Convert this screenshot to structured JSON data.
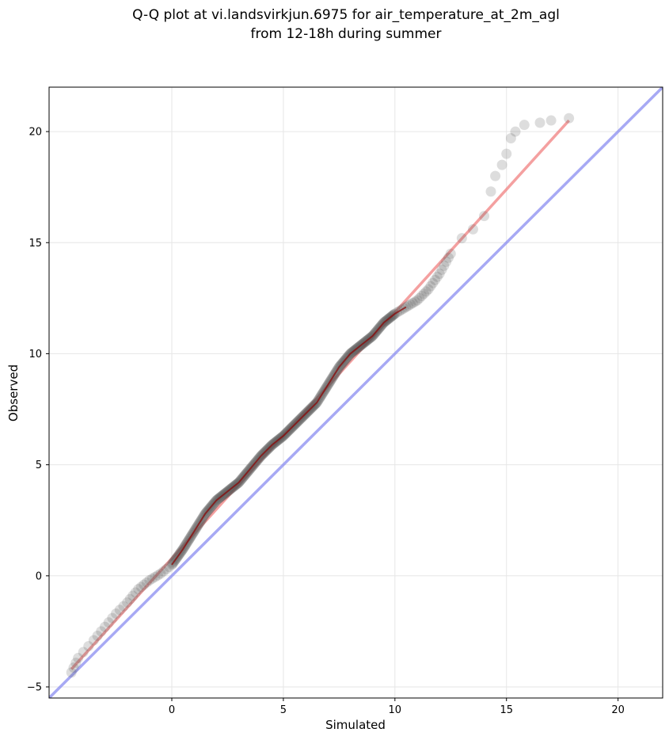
{
  "title_lines": [
    "Q-Q plot at vi.landsvirkjun.6975 for air_temperature_at_2m_agl",
    "from 12-18h during summer"
  ],
  "chart_data": {
    "type": "scatter",
    "title": "Q-Q plot at vi.landsvirkjun.6975 for air_temperature_at_2m_agl from 12-18h during summer",
    "xlabel": "Simulated",
    "ylabel": "Observed",
    "xlim": [
      -5.5,
      22
    ],
    "ylim": [
      -5.5,
      22
    ],
    "xticks": [
      "0",
      "5",
      "10",
      "15",
      "20"
    ],
    "yticks": [
      "−5",
      "0",
      "5",
      "10",
      "15",
      "20"
    ],
    "xtick_values": [
      0,
      5,
      10,
      15,
      20
    ],
    "ytick_values": [
      -5,
      0,
      5,
      10,
      15,
      20
    ],
    "grid": true,
    "quantile_curve": [
      [
        -4.5,
        -4.35
      ],
      [
        -4.2,
        -3.7
      ],
      [
        -3.5,
        -2.9
      ],
      [
        -3.0,
        -2.3
      ],
      [
        -2.5,
        -1.7
      ],
      [
        -2.0,
        -1.2
      ],
      [
        -1.5,
        -0.6
      ],
      [
        -1.0,
        -0.2
      ],
      [
        -0.5,
        0.1
      ],
      [
        0.0,
        0.5
      ],
      [
        0.5,
        1.2
      ],
      [
        1.0,
        2.0
      ],
      [
        1.5,
        2.8
      ],
      [
        2.0,
        3.4
      ],
      [
        2.5,
        3.8
      ],
      [
        3.0,
        4.2
      ],
      [
        3.5,
        4.8
      ],
      [
        4.0,
        5.4
      ],
      [
        4.5,
        5.9
      ],
      [
        5.0,
        6.3
      ],
      [
        5.5,
        6.8
      ],
      [
        6.0,
        7.3
      ],
      [
        6.5,
        7.8
      ],
      [
        7.0,
        8.6
      ],
      [
        7.5,
        9.4
      ],
      [
        8.0,
        10.0
      ],
      [
        8.5,
        10.4
      ],
      [
        9.0,
        10.8
      ],
      [
        9.5,
        11.4
      ],
      [
        10.0,
        11.8
      ],
      [
        10.5,
        12.1
      ],
      [
        11.0,
        12.4
      ],
      [
        11.5,
        12.9
      ],
      [
        12.0,
        13.6
      ],
      [
        12.5,
        14.5
      ],
      [
        13.0,
        15.2
      ],
      [
        13.5,
        15.6
      ],
      [
        14.0,
        16.2
      ],
      [
        14.3,
        17.3
      ],
      [
        14.5,
        18.0
      ],
      [
        14.8,
        18.5
      ],
      [
        15.0,
        19.0
      ],
      [
        15.2,
        19.7
      ],
      [
        15.4,
        20.0
      ],
      [
        15.8,
        20.3
      ],
      [
        16.5,
        20.4
      ],
      [
        17.0,
        20.5
      ],
      [
        17.8,
        20.6
      ]
    ],
    "point_color": "#555555",
    "fit_line": {
      "from": [
        -4.5,
        -4.2
      ],
      "to": [
        17.8,
        20.5
      ],
      "color": "#f08080"
    },
    "identity_line": {
      "color": "#8a8cf0"
    }
  }
}
